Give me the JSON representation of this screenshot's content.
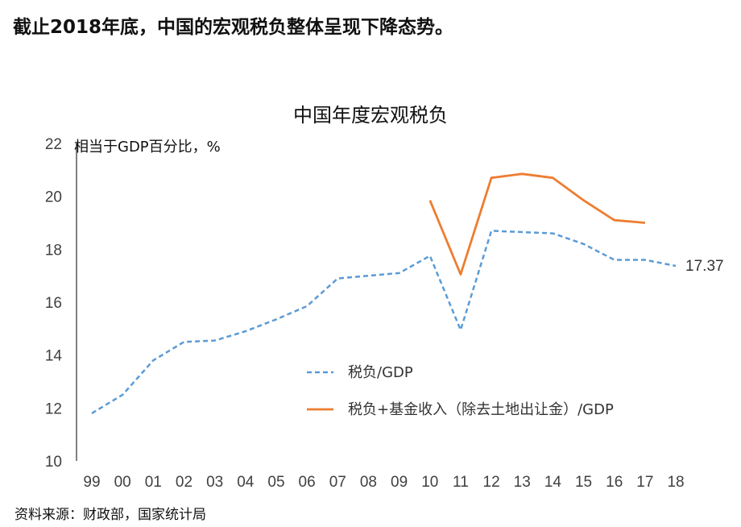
{
  "headline": "截止2018年底，中国的宏观税负整体呈现下降态势。",
  "source": "资料来源：财政部，国家统计局",
  "colors": {
    "series_a": "#5b9bd5",
    "series_b": "#ed7d31",
    "axis": "#000000"
  },
  "chart_data": {
    "type": "line",
    "title": "中国年度宏观税负",
    "ylabel": "相当于GDP百分比，%",
    "xlabel": "",
    "ylim": [
      10,
      22
    ],
    "yticks": [
      10,
      12,
      14,
      16,
      18,
      20,
      22
    ],
    "grid": false,
    "legend_position": "center",
    "categories": [
      "99",
      "00",
      "01",
      "02",
      "03",
      "04",
      "05",
      "06",
      "07",
      "08",
      "09",
      "10",
      "11",
      "12",
      "13",
      "14",
      "15",
      "16",
      "17",
      "18"
    ],
    "series": [
      {
        "name": "税负/GDP",
        "style": "dashed",
        "values": [
          11.8,
          12.5,
          13.8,
          14.5,
          14.55,
          14.9,
          15.35,
          15.85,
          16.9,
          17.0,
          17.1,
          17.75,
          14.95,
          18.7,
          18.65,
          18.6,
          18.2,
          17.6,
          17.6,
          17.37
        ]
      },
      {
        "name": "税负+基金收入（除去土地出让金）/GDP",
        "style": "solid",
        "values": [
          null,
          null,
          null,
          null,
          null,
          null,
          null,
          null,
          null,
          null,
          null,
          19.85,
          17.05,
          20.7,
          20.85,
          20.7,
          19.85,
          19.1,
          19.0,
          null
        ]
      }
    ],
    "annotations": [
      {
        "category": "18",
        "label": "17.37"
      }
    ]
  }
}
